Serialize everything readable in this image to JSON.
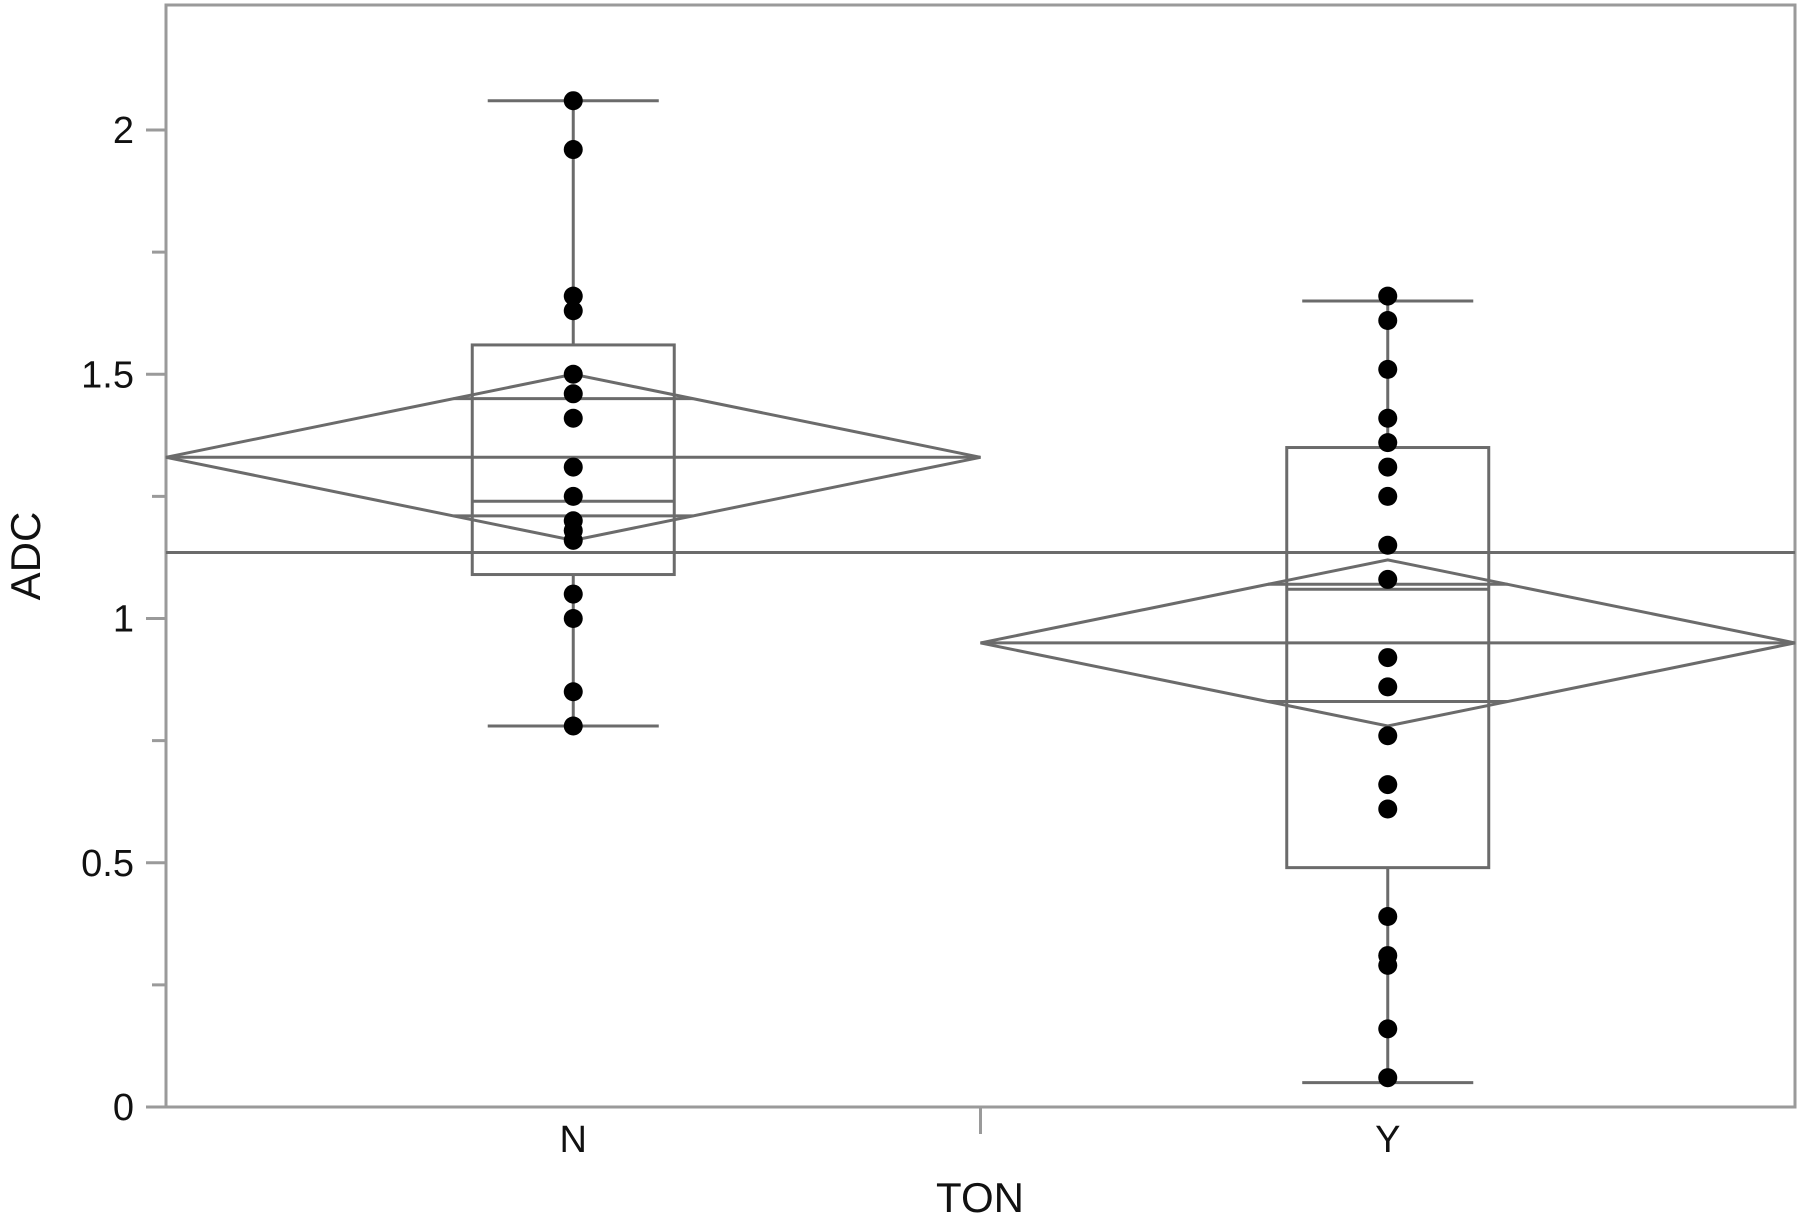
{
  "chart_data": {
    "type": "box",
    "title": "",
    "xlabel": "TON",
    "ylabel": "ADC",
    "ylim": [
      0,
      2.25
    ],
    "y_ticks": [
      0,
      0.5,
      1,
      1.5,
      2
    ],
    "y_tick_labels": [
      "0",
      "0.5",
      "1",
      "1.5",
      "2"
    ],
    "y_minor_ticks": [
      0.25,
      0.75,
      1.25,
      1.75
    ],
    "categories": [
      "N",
      "Y"
    ],
    "grand_mean": 1.135,
    "groups": [
      {
        "category": "N",
        "box": {
          "min": 0.78,
          "q1": 1.09,
          "median": 1.24,
          "q3": 1.56,
          "max": 2.06
        },
        "means_diamond": {
          "mean": 1.33,
          "lower": 1.16,
          "upper": 1.5,
          "overlap_lower": 1.21,
          "overlap_upper": 1.45
        },
        "points": [
          2.06,
          1.96,
          1.66,
          1.63,
          1.5,
          1.46,
          1.41,
          1.31,
          1.25,
          1.2,
          1.18,
          1.16,
          1.05,
          1.0,
          0.85,
          0.78
        ]
      },
      {
        "category": "Y",
        "box": {
          "min": 0.05,
          "q1": 0.49,
          "median": 1.06,
          "q3": 1.35,
          "max": 1.65
        },
        "means_diamond": {
          "mean": 0.95,
          "lower": 0.78,
          "upper": 1.12,
          "overlap_lower": 0.83,
          "overlap_upper": 1.07
        },
        "points": [
          1.66,
          1.61,
          1.51,
          1.41,
          1.36,
          1.31,
          1.25,
          1.15,
          1.08,
          0.92,
          0.86,
          0.76,
          0.66,
          0.61,
          0.39,
          0.31,
          0.29,
          0.16,
          0.06
        ]
      }
    ],
    "colors": {
      "lines": "#6b6b6b",
      "points": "#000000",
      "frame": "#9a9a9a"
    }
  }
}
